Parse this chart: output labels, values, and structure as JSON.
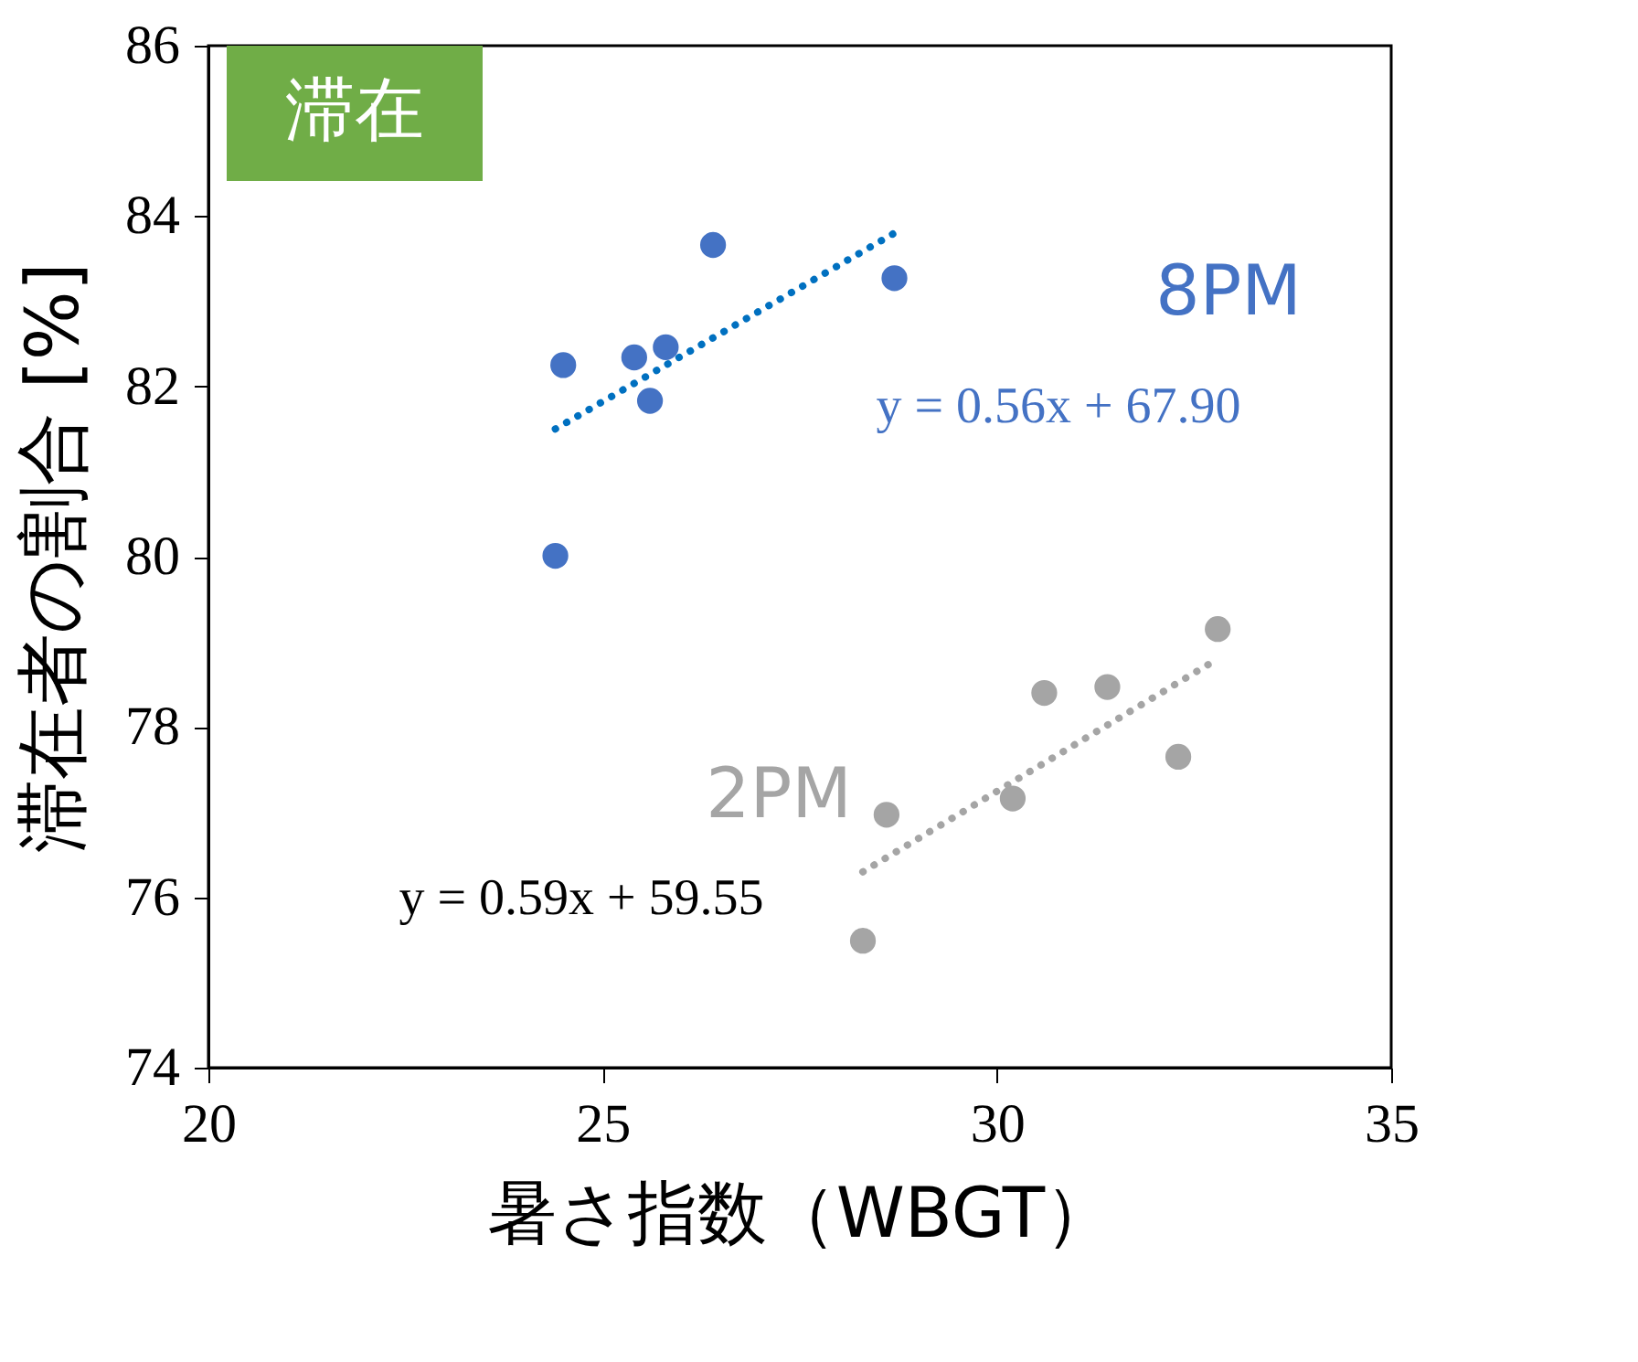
{
  "chart_data": {
    "type": "scatter",
    "xlabel": "暑さ指数（WBGT）",
    "ylabel": "滞在者の割合 [%]",
    "xlim": [
      20,
      35
    ],
    "xticks": [
      20,
      25,
      30,
      35
    ],
    "ylim": [
      74,
      86
    ],
    "yticks": [
      74,
      76,
      78,
      80,
      82,
      84,
      86
    ],
    "grid": false,
    "series": [
      {
        "name": "8PM",
        "color": "#4472c4",
        "marker": "circle",
        "x": [
          24.5,
          25.4,
          25.6,
          25.8,
          26.4,
          28.7,
          24.4
        ],
        "values": [
          82.25,
          82.34,
          81.83,
          82.46,
          83.66,
          83.27,
          80.01
        ]
      },
      {
        "name": "2PM",
        "color": "#a5a5a5",
        "marker": "circle",
        "x": [
          28.3,
          28.6,
          30.2,
          30.6,
          31.4,
          32.3,
          32.8
        ],
        "values": [
          75.49,
          76.97,
          77.16,
          78.4,
          78.47,
          77.65,
          79.15
        ]
      },
      {
        "color": "#0070c0",
        "type": "line",
        "line_style": "dotted",
        "x": [
          24.4,
          28.7
        ],
        "values": [
          81.5,
          83.8
        ]
      },
      {
        "color": "#a5a5a5",
        "type": "line",
        "line_style": "dotted",
        "x": [
          28.3,
          32.8
        ],
        "values": [
          76.3,
          78.8
        ]
      }
    ],
    "annotations": [
      "滞在",
      "y = 0.56x + 67.90",
      "y = 0.59x + 59.55"
    ]
  }
}
